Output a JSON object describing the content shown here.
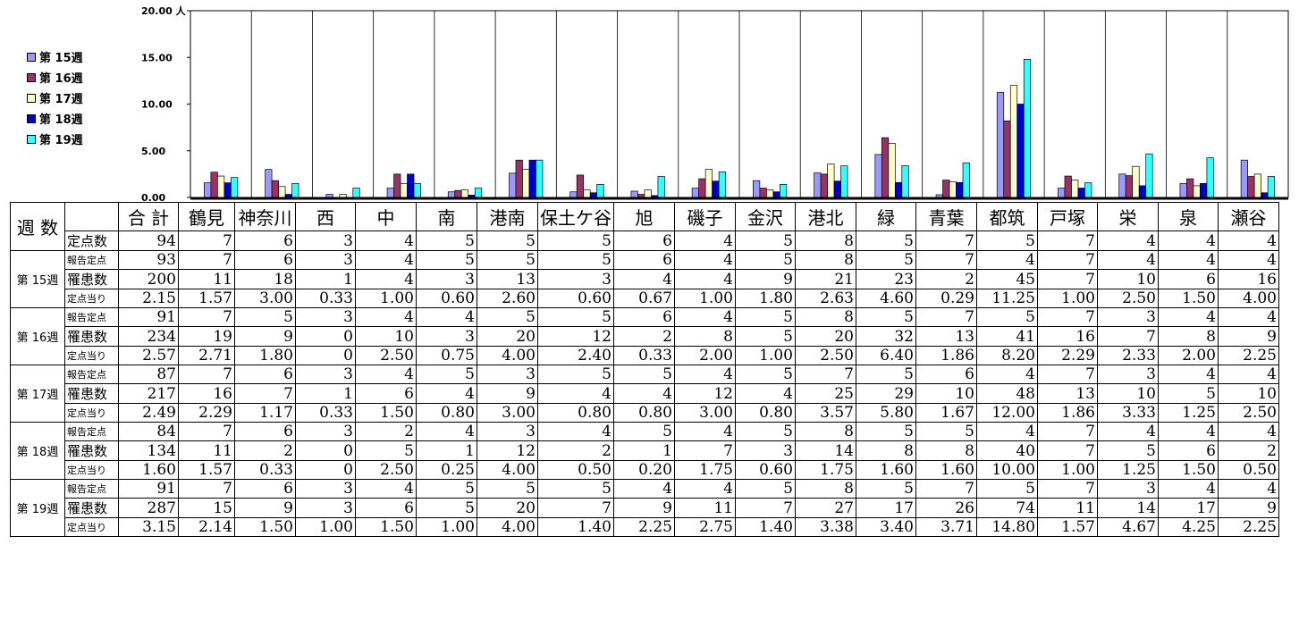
{
  "chart_data": {
    "type": "bar",
    "ylim": [
      0,
      20
    ],
    "yticks": [
      "0.00",
      "5.00",
      "10.00",
      "15.00",
      "20.00 人"
    ],
    "categories": [
      "鶴見",
      "神奈川",
      "西",
      "中",
      "南",
      "港南",
      "保土ケ谷",
      "旭",
      "磯子",
      "金沢",
      "港北",
      "緑",
      "青葉",
      "都筑",
      "戸塚",
      "栄",
      "泉",
      "瀬谷"
    ],
    "series": [
      {
        "name": "第 15週",
        "color": "#9999ff",
        "values": [
          1.57,
          3.0,
          0.33,
          1.0,
          0.6,
          2.6,
          0.6,
          0.67,
          1.0,
          1.8,
          2.63,
          4.6,
          0.29,
          11.25,
          1.0,
          2.5,
          1.5,
          4.0
        ]
      },
      {
        "name": "第 16週",
        "color": "#993366",
        "values": [
          2.71,
          1.8,
          0,
          2.5,
          0.75,
          4.0,
          2.4,
          0.33,
          2.0,
          1.0,
          2.5,
          6.4,
          1.86,
          8.2,
          2.29,
          2.33,
          2.0,
          2.25
        ]
      },
      {
        "name": "第 17週",
        "color": "#ffffcc",
        "values": [
          2.29,
          1.17,
          0.33,
          1.5,
          0.8,
          3.0,
          0.8,
          0.8,
          3.0,
          0.8,
          3.57,
          5.8,
          1.67,
          12.0,
          1.86,
          3.33,
          1.25,
          2.5
        ]
      },
      {
        "name": "第 18週",
        "color": "#0000cc",
        "values": [
          1.57,
          0.33,
          0,
          2.5,
          0.25,
          4.0,
          0.5,
          0.2,
          1.75,
          0.6,
          1.75,
          1.6,
          1.6,
          10.0,
          1.0,
          1.25,
          1.5,
          0.5
        ]
      },
      {
        "name": "第 19週",
        "color": "#33ffff",
        "values": [
          2.14,
          1.5,
          1.0,
          1.5,
          1.0,
          4.0,
          1.4,
          2.25,
          2.75,
          1.4,
          3.38,
          3.4,
          3.71,
          14.8,
          1.57,
          4.67,
          4.25,
          2.25
        ]
      }
    ]
  },
  "table": {
    "corner": "週 数",
    "total_header": "合 計",
    "wards": [
      "鶴見",
      "神奈川",
      "西",
      "中",
      "南",
      "港南",
      "保土ケ谷",
      "旭",
      "磯子",
      "金沢",
      "港北",
      "緑",
      "青葉",
      "都筑",
      "戸塚",
      "栄",
      "泉",
      "瀬谷"
    ],
    "fixed_label": "定点数",
    "fixed_values": [
      "94",
      "7",
      "6",
      "3",
      "4",
      "5",
      "5",
      "5",
      "6",
      "4",
      "5",
      "8",
      "5",
      "7",
      "5",
      "7",
      "4",
      "4",
      "4"
    ],
    "weeks": [
      {
        "label": "第 15週",
        "rows": [
          {
            "label": "報告定点",
            "values": [
              "93",
              "7",
              "6",
              "3",
              "4",
              "5",
              "5",
              "5",
              "6",
              "4",
              "5",
              "8",
              "5",
              "7",
              "4",
              "7",
              "4",
              "4",
              "4"
            ]
          },
          {
            "label": "罹患数",
            "values": [
              "200",
              "11",
              "18",
              "1",
              "4",
              "3",
              "13",
              "3",
              "4",
              "4",
              "9",
              "21",
              "23",
              "2",
              "45",
              "7",
              "10",
              "6",
              "16"
            ]
          },
          {
            "label": "定点当り",
            "values": [
              "2.15",
              "1.57",
              "3.00",
              "0.33",
              "1.00",
              "0.60",
              "2.60",
              "0.60",
              "0.67",
              "1.00",
              "1.80",
              "2.63",
              "4.60",
              "0.29",
              "11.25",
              "1.00",
              "2.50",
              "1.50",
              "4.00"
            ]
          }
        ]
      },
      {
        "label": "第 16週",
        "rows": [
          {
            "label": "報告定点",
            "values": [
              "91",
              "7",
              "5",
              "3",
              "4",
              "4",
              "5",
              "5",
              "6",
              "4",
              "5",
              "8",
              "5",
              "7",
              "5",
              "7",
              "3",
              "4",
              "4"
            ]
          },
          {
            "label": "罹患数",
            "values": [
              "234",
              "19",
              "9",
              "0",
              "10",
              "3",
              "20",
              "12",
              "2",
              "8",
              "5",
              "20",
              "32",
              "13",
              "41",
              "16",
              "7",
              "8",
              "9"
            ]
          },
          {
            "label": "定点当り",
            "values": [
              "2.57",
              "2.71",
              "1.80",
              "0",
              "2.50",
              "0.75",
              "4.00",
              "2.40",
              "0.33",
              "2.00",
              "1.00",
              "2.50",
              "6.40",
              "1.86",
              "8.20",
              "2.29",
              "2.33",
              "2.00",
              "2.25"
            ]
          }
        ]
      },
      {
        "label": "第 17週",
        "rows": [
          {
            "label": "報告定点",
            "values": [
              "87",
              "7",
              "6",
              "3",
              "4",
              "5",
              "3",
              "5",
              "5",
              "4",
              "5",
              "7",
              "5",
              "6",
              "4",
              "7",
              "3",
              "4",
              "4"
            ]
          },
          {
            "label": "罹患数",
            "values": [
              "217",
              "16",
              "7",
              "1",
              "6",
              "4",
              "9",
              "4",
              "4",
              "12",
              "4",
              "25",
              "29",
              "10",
              "48",
              "13",
              "10",
              "5",
              "10"
            ]
          },
          {
            "label": "定点当り",
            "values": [
              "2.49",
              "2.29",
              "1.17",
              "0.33",
              "1.50",
              "0.80",
              "3.00",
              "0.80",
              "0.80",
              "3.00",
              "0.80",
              "3.57",
              "5.80",
              "1.67",
              "12.00",
              "1.86",
              "3.33",
              "1.25",
              "2.50"
            ]
          }
        ]
      },
      {
        "label": "第 18週",
        "rows": [
          {
            "label": "報告定点",
            "values": [
              "84",
              "7",
              "6",
              "3",
              "2",
              "4",
              "3",
              "4",
              "5",
              "4",
              "5",
              "8",
              "5",
              "5",
              "4",
              "7",
              "4",
              "4",
              "4"
            ]
          },
          {
            "label": "罹患数",
            "values": [
              "134",
              "11",
              "2",
              "0",
              "5",
              "1",
              "12",
              "2",
              "1",
              "7",
              "3",
              "14",
              "8",
              "8",
              "40",
              "7",
              "5",
              "6",
              "2"
            ]
          },
          {
            "label": "定点当り",
            "values": [
              "1.60",
              "1.57",
              "0.33",
              "0",
              "2.50",
              "0.25",
              "4.00",
              "0.50",
              "0.20",
              "1.75",
              "0.60",
              "1.75",
              "1.60",
              "1.60",
              "10.00",
              "1.00",
              "1.25",
              "1.50",
              "0.50"
            ]
          }
        ]
      },
      {
        "label": "第 19週",
        "rows": [
          {
            "label": "報告定点",
            "values": [
              "91",
              "7",
              "6",
              "3",
              "4",
              "5",
              "5",
              "5",
              "4",
              "4",
              "5",
              "8",
              "5",
              "7",
              "5",
              "7",
              "3",
              "4",
              "4"
            ]
          },
          {
            "label": "罹患数",
            "values": [
              "287",
              "15",
              "9",
              "3",
              "6",
              "5",
              "20",
              "7",
              "9",
              "11",
              "7",
              "27",
              "17",
              "26",
              "74",
              "11",
              "14",
              "17",
              "9"
            ]
          },
          {
            "label": "定点当り",
            "values": [
              "3.15",
              "2.14",
              "1.50",
              "1.00",
              "1.50",
              "1.00",
              "4.00",
              "1.40",
              "2.25",
              "2.75",
              "1.40",
              "3.38",
              "3.40",
              "3.71",
              "14.80",
              "1.57",
              "4.67",
              "4.25",
              "2.25"
            ]
          }
        ]
      }
    ]
  }
}
